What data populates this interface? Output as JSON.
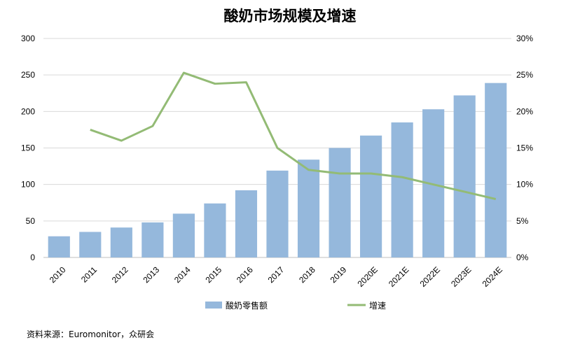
{
  "chart_data": {
    "type": "bar",
    "title": "酸奶市场规模及增速",
    "categories": [
      "2010",
      "2011",
      "2012",
      "2013",
      "2014",
      "2015",
      "2016",
      "2017",
      "2018",
      "2019",
      "2020E",
      "2021E",
      "2022E",
      "2023E",
      "2024E"
    ],
    "series": [
      {
        "name": "酸奶零售额",
        "type": "bar",
        "axis": "left",
        "color": "#95B8DC",
        "values": [
          29,
          35,
          41,
          48,
          60,
          74,
          92,
          119,
          134,
          150,
          167,
          185,
          203,
          222,
          239
        ]
      },
      {
        "name": "增速",
        "type": "line",
        "axis": "right",
        "color": "#93BB75",
        "values": [
          null,
          17.5,
          16.0,
          18.0,
          25.3,
          23.8,
          24.0,
          15.0,
          12.0,
          11.5,
          11.5,
          11.0,
          10.0,
          9.0,
          8.0
        ]
      }
    ],
    "y_left": {
      "min": 0,
      "max": 300,
      "ticks": [
        "0",
        "50",
        "100",
        "150",
        "200",
        "250",
        "300"
      ]
    },
    "y_right": {
      "min": 0,
      "max": 30,
      "ticks": [
        "0%",
        "5%",
        "10%",
        "15%",
        "20%",
        "25%",
        "30%"
      ]
    },
    "grid": true,
    "legend": "bottom",
    "source": "资料来源：Euromonitor，众研会"
  }
}
